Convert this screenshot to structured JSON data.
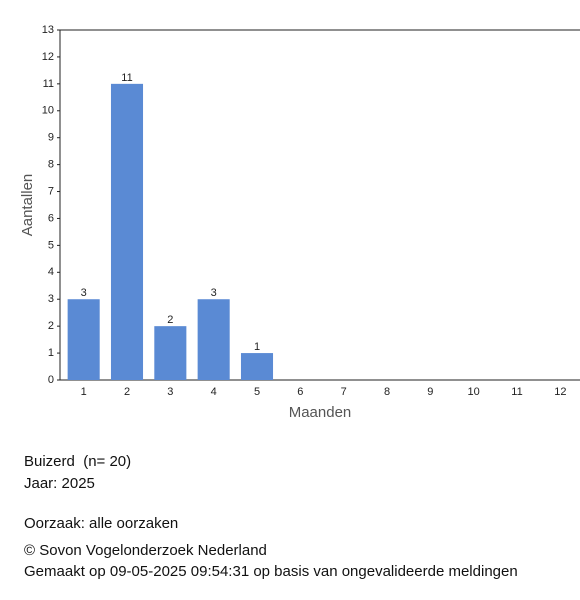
{
  "chart_data": {
    "type": "bar",
    "y_label": "Aantallen",
    "x_label": "Maanden",
    "categories": [
      "1",
      "2",
      "3",
      "4",
      "5",
      "6",
      "7",
      "8",
      "9",
      "10",
      "11",
      "12"
    ],
    "values": [
      3,
      11,
      2,
      3,
      1,
      null,
      null,
      null,
      null,
      null,
      null,
      null
    ],
    "color": "#5a8ad4",
    "ylim": [
      0,
      13
    ],
    "yticks": [
      0,
      1,
      2,
      3,
      4,
      5,
      6,
      7,
      8,
      9,
      10,
      11,
      12,
      13
    ]
  },
  "footer": {
    "species": "Buizerd  (n= 20)",
    "year": "Jaar: 2025",
    "cause": "Oorzaak: alle oorzaken",
    "copyright": "© Sovon Vogelonderzoek Nederland",
    "made": "Gemaakt op 09-05-2025 09:54:31 op basis van ongevalideerde meldingen"
  }
}
